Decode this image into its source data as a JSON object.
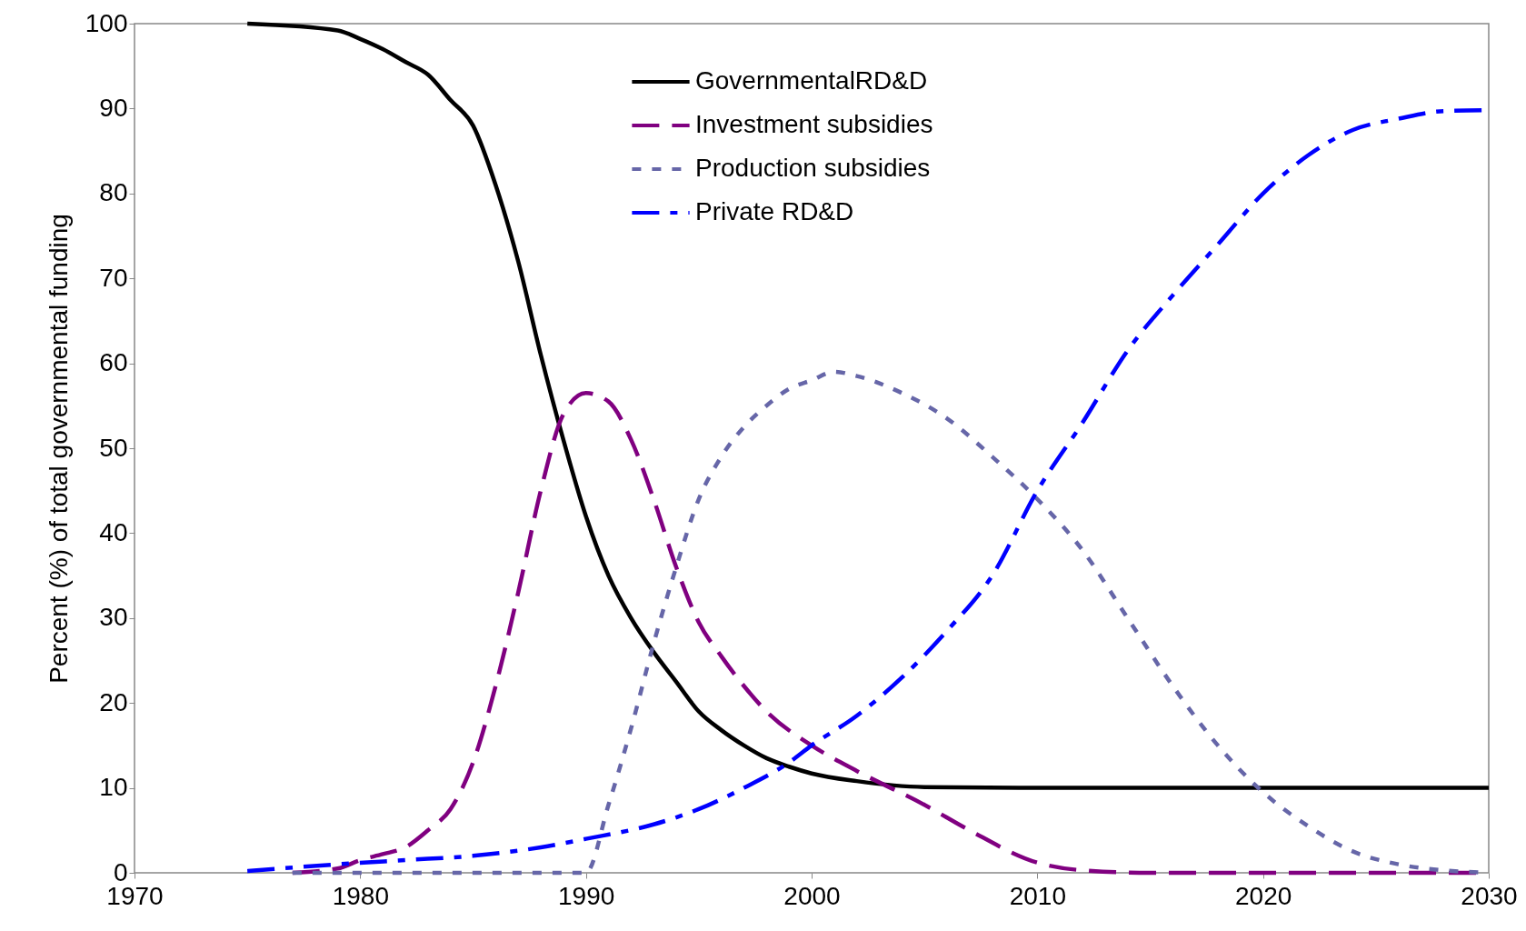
{
  "chart_data": {
    "type": "line",
    "ylabel": "Percent (%) of total governmental funding",
    "xlim": [
      1970,
      2030
    ],
    "xticks": [
      1970,
      1980,
      1990,
      2000,
      2010,
      2020,
      2030
    ],
    "ylim": [
      0,
      100
    ],
    "yticks": [
      0,
      10,
      20,
      30,
      40,
      50,
      60,
      70,
      80,
      90,
      100
    ],
    "grid": false,
    "legend": "top",
    "marker": "none",
    "series": [
      {
        "name": "GovernmentalRD&D",
        "color": "#000000",
        "line_style": "solid",
        "x": [
          1975,
          1979,
          1980,
          1981,
          1982,
          1983,
          1984,
          1985,
          1986,
          1987,
          1988,
          1989,
          1990,
          1991,
          1992,
          1993,
          1994,
          1995,
          1996,
          1997,
          1998,
          1999,
          2000,
          2002,
          2005,
          2010,
          2030
        ],
        "values": [
          100,
          99.2,
          98.2,
          97,
          95.5,
          94,
          91,
          88,
          81,
          72,
          61,
          51,
          42,
          35,
          30,
          26,
          22.5,
          19,
          16.8,
          15,
          13.5,
          12.5,
          11.7,
          10.8,
          10.1,
          10,
          10
        ]
      },
      {
        "name": "Investment subsidies",
        "color": "#800080",
        "line_style": "dashed",
        "x": [
          1977,
          1979,
          1980,
          1981,
          1982,
          1983,
          1984,
          1985,
          1986,
          1987,
          1988,
          1989,
          1990,
          1991,
          1992,
          1993,
          1994,
          1995,
          1996,
          1997,
          1998,
          2000,
          2002,
          2005,
          2007,
          2010,
          2012,
          2015,
          2030
        ],
        "values": [
          0,
          0.5,
          1.5,
          2.2,
          3,
          5,
          7.5,
          13,
          22,
          33,
          45,
          54,
          56.5,
          55.5,
          51,
          44,
          36,
          29.5,
          25.5,
          22,
          19,
          15,
          12,
          8,
          5,
          1.2,
          0.3,
          0,
          0
        ]
      },
      {
        "name": "Production subsidies",
        "color": "#6666a8",
        "line_style": "dotted",
        "x": [
          1977,
          1985,
          1990,
          1991,
          1992,
          1993,
          1994,
          1995,
          1996,
          1997,
          1998,
          1999,
          2000,
          2001,
          2002,
          2004,
          2006,
          2008,
          2010,
          2012,
          2014,
          2016,
          2018,
          2020,
          2022,
          2024,
          2026,
          2028,
          2030
        ],
        "values": [
          0,
          0,
          0,
          8,
          17,
          27,
          36,
          44,
          49,
          52.5,
          55,
          57,
          58,
          59,
          58.5,
          56.5,
          53.5,
          49,
          44,
          38,
          30,
          22,
          15,
          9.5,
          5.5,
          2.5,
          1,
          0.3,
          0
        ]
      },
      {
        "name": "Private RD&D",
        "color": "#0000ff",
        "line_style": "dashdot",
        "x": [
          1975,
          1979,
          1982,
          1985,
          1988,
          1990,
          1993,
          1995,
          1997,
          1999,
          2000,
          2002,
          2004,
          2006,
          2008,
          2010,
          2012,
          2014,
          2016,
          2018,
          2020,
          2022,
          2024,
          2026,
          2028,
          2030
        ],
        "values": [
          0.2,
          1,
          1.5,
          2,
          3,
          4,
          5.7,
          7.5,
          10,
          13,
          15,
          18.5,
          23,
          28.5,
          35,
          45,
          53,
          61.5,
          68,
          74,
          80,
          84.5,
          87.5,
          88.8,
          89.7,
          89.8
        ]
      }
    ]
  }
}
